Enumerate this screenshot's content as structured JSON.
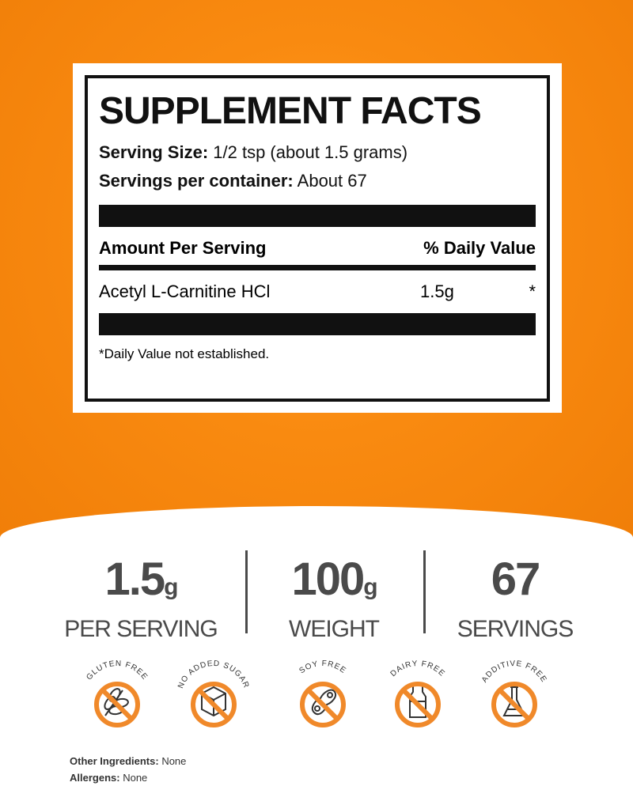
{
  "facts": {
    "title": "SUPPLEMENT FACTS",
    "serving_size_label": "Serving Size:",
    "serving_size": "1/2 tsp (about 1.5 grams)",
    "servings_label": "Servings per container:",
    "servings": "About 67",
    "amount_header": "Amount Per Serving",
    "dv_header": "% Daily Value",
    "ingredient": "Acetyl L-Carnitine HCl",
    "amount": "1.5g",
    "dv": "*",
    "footnote": "*Daily Value not established."
  },
  "stats": [
    {
      "value": "1.5",
      "unit": "g",
      "label": "PER SERVING"
    },
    {
      "value": "100",
      "unit": "g",
      "label": "WEIGHT"
    },
    {
      "value": "67",
      "unit": "",
      "label": "SERVINGS"
    }
  ],
  "badges": [
    {
      "label": "GLUTEN FREE",
      "icon": "wheat-icon"
    },
    {
      "label": "NO ADDED SUGAR",
      "icon": "sugar-cube-icon"
    },
    {
      "label": "SOY FREE",
      "icon": "soybean-icon"
    },
    {
      "label": "DAIRY FREE",
      "icon": "milk-bottle-icon"
    },
    {
      "label": "ADDITIVE FREE",
      "icon": "flask-icon"
    }
  ],
  "other": {
    "ingredients_label": "Other Ingredients:",
    "ingredients": "None",
    "allergens_label": "Allergens:",
    "allergens": "None"
  },
  "colors": {
    "orange": "#f98a10",
    "badge": "#f0892a",
    "text": "#4a4a4a"
  }
}
